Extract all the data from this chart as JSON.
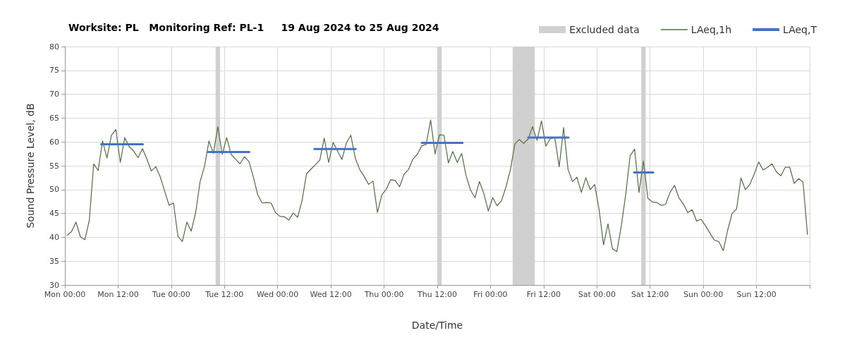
{
  "chart_data": {
    "type": "line",
    "title": "Worksite: PL   Monitoring Ref: PL-1     19 Aug 2024 to 25 Aug 2024",
    "xlabel": "Date/Time",
    "ylabel": "Sound Pressure Level, dB",
    "xlim": [
      "2024-08-19T00:00",
      "2024-08-26T00:00"
    ],
    "xticks": [
      {
        "value": "2024-08-19T00:00",
        "label": "Mon 00:00"
      },
      {
        "value": "2024-08-19T12:00",
        "label": "Mon 12:00"
      },
      {
        "value": "2024-08-20T00:00",
        "label": "Tue 00:00"
      },
      {
        "value": "2024-08-20T12:00",
        "label": "Tue 12:00"
      },
      {
        "value": "2024-08-21T00:00",
        "label": "Wed 00:00"
      },
      {
        "value": "2024-08-21T12:00",
        "label": "Wed 12:00"
      },
      {
        "value": "2024-08-22T00:00",
        "label": "Thu 00:00"
      },
      {
        "value": "2024-08-22T12:00",
        "label": "Thu 12:00"
      },
      {
        "value": "2024-08-23T00:00",
        "label": "Fri 00:00"
      },
      {
        "value": "2024-08-23T12:00",
        "label": "Fri 12:00"
      },
      {
        "value": "2024-08-24T00:00",
        "label": "Sat 00:00"
      },
      {
        "value": "2024-08-24T12:00",
        "label": "Sat 12:00"
      },
      {
        "value": "2024-08-25T00:00",
        "label": "Sun 00:00"
      },
      {
        "value": "2024-08-25T12:00",
        "label": "Sun 12:00"
      },
      {
        "value": "2024-08-26T00:00",
        "label": null
      }
    ],
    "ylim": [
      30,
      80
    ],
    "yticks": [
      30,
      35,
      40,
      45,
      50,
      55,
      60,
      65,
      70,
      75,
      80
    ],
    "grid": true,
    "legend": "top right",
    "marker": "none",
    "line_style": "solid",
    "bands": [
      {
        "axis": "x",
        "from": "2024-08-20T10:00",
        "to": "2024-08-20T11:00",
        "label": "Excluded data",
        "color": "#d0d0d0"
      },
      {
        "axis": "x",
        "from": "2024-08-22T12:00",
        "to": "2024-08-22T13:00",
        "color": "#d0d0d0"
      },
      {
        "axis": "x",
        "from": "2024-08-23T05:00",
        "to": "2024-08-23T10:00",
        "color": "#d0d0d0"
      },
      {
        "axis": "x",
        "from": "2024-08-24T10:00",
        "to": "2024-08-24T11:00",
        "color": "#d0d0d0"
      }
    ],
    "series": [
      {
        "name": "LAeq,1h",
        "color": "#4f6e3f",
        "x": [
          "2024-08-19T00:30",
          "2024-08-19T01:30",
          "2024-08-19T02:30",
          "2024-08-19T03:30",
          "2024-08-19T04:30",
          "2024-08-19T05:30",
          "2024-08-19T06:30",
          "2024-08-19T07:30",
          "2024-08-19T08:30",
          "2024-08-19T09:30",
          "2024-08-19T10:30",
          "2024-08-19T11:30",
          "2024-08-19T12:30",
          "2024-08-19T13:30",
          "2024-08-19T14:30",
          "2024-08-19T15:30",
          "2024-08-19T16:30",
          "2024-08-19T17:30",
          "2024-08-19T18:30",
          "2024-08-19T19:30",
          "2024-08-19T20:30",
          "2024-08-19T21:30",
          "2024-08-19T22:30",
          "2024-08-19T23:30",
          "2024-08-20T00:30",
          "2024-08-20T01:30",
          "2024-08-20T02:30",
          "2024-08-20T03:30",
          "2024-08-20T04:30",
          "2024-08-20T05:30",
          "2024-08-20T06:30",
          "2024-08-20T07:30",
          "2024-08-20T08:30",
          "2024-08-20T09:30",
          "2024-08-20T10:30",
          "2024-08-20T11:30",
          "2024-08-20T12:30",
          "2024-08-20T13:30",
          "2024-08-20T14:30",
          "2024-08-20T15:30",
          "2024-08-20T16:30",
          "2024-08-20T17:30",
          "2024-08-20T18:30",
          "2024-08-20T19:30",
          "2024-08-20T20:30",
          "2024-08-20T21:30",
          "2024-08-20T22:30",
          "2024-08-20T23:30",
          "2024-08-21T00:30",
          "2024-08-21T01:30",
          "2024-08-21T02:30",
          "2024-08-21T03:30",
          "2024-08-21T04:30",
          "2024-08-21T05:30",
          "2024-08-21T06:30",
          "2024-08-21T07:30",
          "2024-08-21T08:30",
          "2024-08-21T09:30",
          "2024-08-21T10:30",
          "2024-08-21T11:30",
          "2024-08-21T12:30",
          "2024-08-21T13:30",
          "2024-08-21T14:30",
          "2024-08-21T15:30",
          "2024-08-21T16:30",
          "2024-08-21T17:30",
          "2024-08-21T18:30",
          "2024-08-21T19:30",
          "2024-08-21T20:30",
          "2024-08-21T21:30",
          "2024-08-21T22:30",
          "2024-08-21T23:30",
          "2024-08-22T00:30",
          "2024-08-22T01:30",
          "2024-08-22T02:30",
          "2024-08-22T03:30",
          "2024-08-22T04:30",
          "2024-08-22T05:30",
          "2024-08-22T06:30",
          "2024-08-22T07:30",
          "2024-08-22T08:30",
          "2024-08-22T09:30",
          "2024-08-22T10:30",
          "2024-08-22T11:30",
          "2024-08-22T12:30",
          "2024-08-22T13:30",
          "2024-08-22T14:30",
          "2024-08-22T15:30",
          "2024-08-22T16:30",
          "2024-08-22T17:30",
          "2024-08-22T18:30",
          "2024-08-22T19:30",
          "2024-08-22T20:30",
          "2024-08-22T21:30",
          "2024-08-22T22:30",
          "2024-08-22T23:30",
          "2024-08-23T00:30",
          "2024-08-23T01:30",
          "2024-08-23T02:30",
          "2024-08-23T03:30",
          "2024-08-23T04:30",
          "2024-08-23T05:30",
          "2024-08-23T06:30",
          "2024-08-23T07:30",
          "2024-08-23T08:30",
          "2024-08-23T09:30",
          "2024-08-23T10:30",
          "2024-08-23T11:30",
          "2024-08-23T12:30",
          "2024-08-23T13:30",
          "2024-08-23T14:30",
          "2024-08-23T15:30",
          "2024-08-23T16:30",
          "2024-08-23T17:30",
          "2024-08-23T18:30",
          "2024-08-23T19:30",
          "2024-08-23T20:30",
          "2024-08-23T21:30",
          "2024-08-23T22:30",
          "2024-08-23T23:30",
          "2024-08-24T00:30",
          "2024-08-24T01:30",
          "2024-08-24T02:30",
          "2024-08-24T03:30",
          "2024-08-24T04:30",
          "2024-08-24T05:30",
          "2024-08-24T06:30",
          "2024-08-24T07:30",
          "2024-08-24T08:30",
          "2024-08-24T09:30",
          "2024-08-24T10:30",
          "2024-08-24T11:30",
          "2024-08-24T12:30",
          "2024-08-24T13:30",
          "2024-08-24T14:30",
          "2024-08-24T15:30",
          "2024-08-24T16:30",
          "2024-08-24T17:30",
          "2024-08-24T18:30",
          "2024-08-24T19:30",
          "2024-08-24T20:30",
          "2024-08-24T21:30",
          "2024-08-24T22:30",
          "2024-08-24T23:30",
          "2024-08-25T00:30",
          "2024-08-25T01:30",
          "2024-08-25T02:30",
          "2024-08-25T03:30",
          "2024-08-25T04:30",
          "2024-08-25T05:30",
          "2024-08-25T06:30",
          "2024-08-25T07:30",
          "2024-08-25T08:30",
          "2024-08-25T09:30",
          "2024-08-25T10:30",
          "2024-08-25T11:30",
          "2024-08-25T12:30",
          "2024-08-25T13:30",
          "2024-08-25T14:30",
          "2024-08-25T15:30",
          "2024-08-25T16:30",
          "2024-08-25T17:30",
          "2024-08-25T18:30",
          "2024-08-25T19:30",
          "2024-08-25T20:30",
          "2024-08-25T21:30",
          "2024-08-25T22:30",
          "2024-08-25T23:30"
        ],
        "values": [
          40.4,
          41.2,
          43.2,
          40.1,
          39.5,
          43.5,
          55.4,
          54.0,
          60.2,
          56.6,
          61.4,
          62.6,
          55.7,
          60.9,
          59.0,
          58.1,
          56.7,
          58.6,
          56.4,
          53.9,
          54.8,
          52.7,
          49.7,
          46.7,
          47.2,
          40.2,
          39.1,
          43.2,
          41.3,
          45.2,
          51.7,
          54.9,
          60.2,
          57.6,
          63.2,
          57.4,
          60.9,
          57.4,
          56.4,
          55.4,
          56.9,
          55.9,
          52.7,
          48.9,
          47.2,
          47.3,
          47.2,
          45.2,
          44.4,
          44.3,
          43.6,
          45.1,
          44.2,
          47.7,
          53.3,
          54.3,
          55.2,
          56.2,
          60.8,
          55.7,
          59.9,
          58.1,
          56.3,
          59.8,
          61.4,
          56.6,
          54.2,
          52.8,
          51.1,
          51.8,
          45.2,
          48.9,
          50.1,
          52.1,
          51.9,
          50.6,
          53.2,
          54.2,
          56.4,
          57.4,
          59.2,
          59.5,
          64.6,
          57.5,
          61.5,
          61.4,
          55.6,
          58.0,
          55.7,
          57.6,
          52.9,
          49.9,
          48.3,
          51.7,
          49.2,
          45.5,
          48.3,
          46.6,
          47.7,
          50.6,
          54.2,
          59.6,
          60.5,
          59.7,
          60.6,
          63.2,
          60.3,
          64.4,
          59.1,
          60.7,
          60.9,
          54.8,
          63.0,
          54.2,
          51.7,
          52.6,
          49.4,
          52.5,
          50.0,
          51.1,
          45.8,
          38.4,
          42.8,
          37.6,
          37.0,
          42.3,
          49.0,
          57.1,
          58.5,
          49.4,
          56.0,
          48.2,
          47.4,
          47.3,
          46.7,
          46.9,
          49.4,
          50.9,
          48.3,
          47.0,
          45.2,
          45.8,
          43.4,
          43.8,
          42.4,
          40.9,
          39.4,
          39.1,
          37.2,
          41.5,
          45.0,
          45.9,
          52.4,
          50.0,
          51.1,
          53.3,
          55.8,
          54.1,
          54.7,
          55.4,
          53.7,
          52.9,
          54.7,
          54.7,
          51.3,
          52.3,
          51.6,
          40.6
        ]
      },
      {
        "name": "LAeq,T",
        "color": "#4472c4",
        "x": [
          "2024-08-19T08:12",
          "2024-08-19T17:36",
          "2024-08-20T01:00",
          "2024-08-20T08:18",
          "2024-08-20T17:36",
          "2024-08-21T01:00",
          "2024-08-21T08:18",
          "2024-08-21T17:36",
          "2024-08-22T01:00",
          "2024-08-22T08:30",
          "2024-08-22T17:42",
          "2024-08-23T01:00",
          "2024-08-23T08:30",
          "2024-08-23T17:36",
          "2024-08-24T01:00",
          "2024-08-24T08:24",
          "2024-08-24T12:42"
        ],
        "values": [
          59.5,
          59.5,
          null,
          57.9,
          57.9,
          null,
          58.5,
          58.5,
          null,
          59.8,
          59.8,
          null,
          60.9,
          60.9,
          null,
          53.6,
          53.6
        ]
      }
    ]
  }
}
